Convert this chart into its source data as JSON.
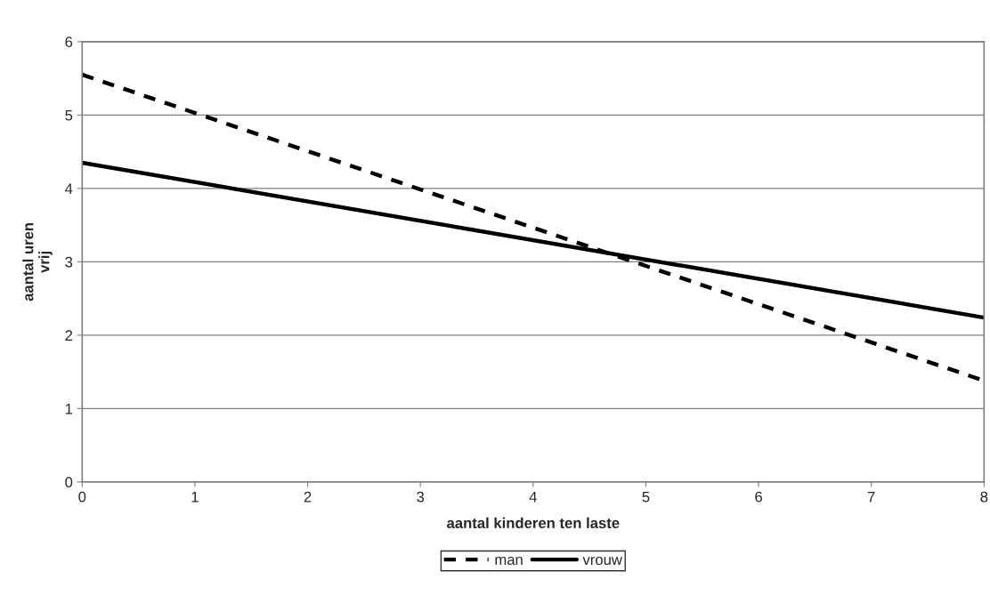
{
  "chart_data": {
    "type": "line",
    "xlabel": "aantal kinderen ten laste",
    "ylabel": "aantal uren\nvrij",
    "x": [
      0,
      8
    ],
    "series": [
      {
        "name": "man",
        "color": "#000000",
        "values": [
          5.55,
          1.38
        ],
        "line_style": "dashed"
      },
      {
        "name": "vrouw",
        "color": "#000000",
        "values": [
          4.35,
          2.24
        ],
        "line_style": "solid"
      }
    ],
    "xlim": [
      0,
      8
    ],
    "xticks": [
      0,
      1,
      2,
      3,
      4,
      5,
      6,
      7,
      8
    ],
    "ylim": [
      0,
      6
    ],
    "yticks": [
      0,
      1,
      2,
      3,
      4,
      5,
      6
    ],
    "grid": "y",
    "legend": "bottom",
    "marker": "none"
  }
}
